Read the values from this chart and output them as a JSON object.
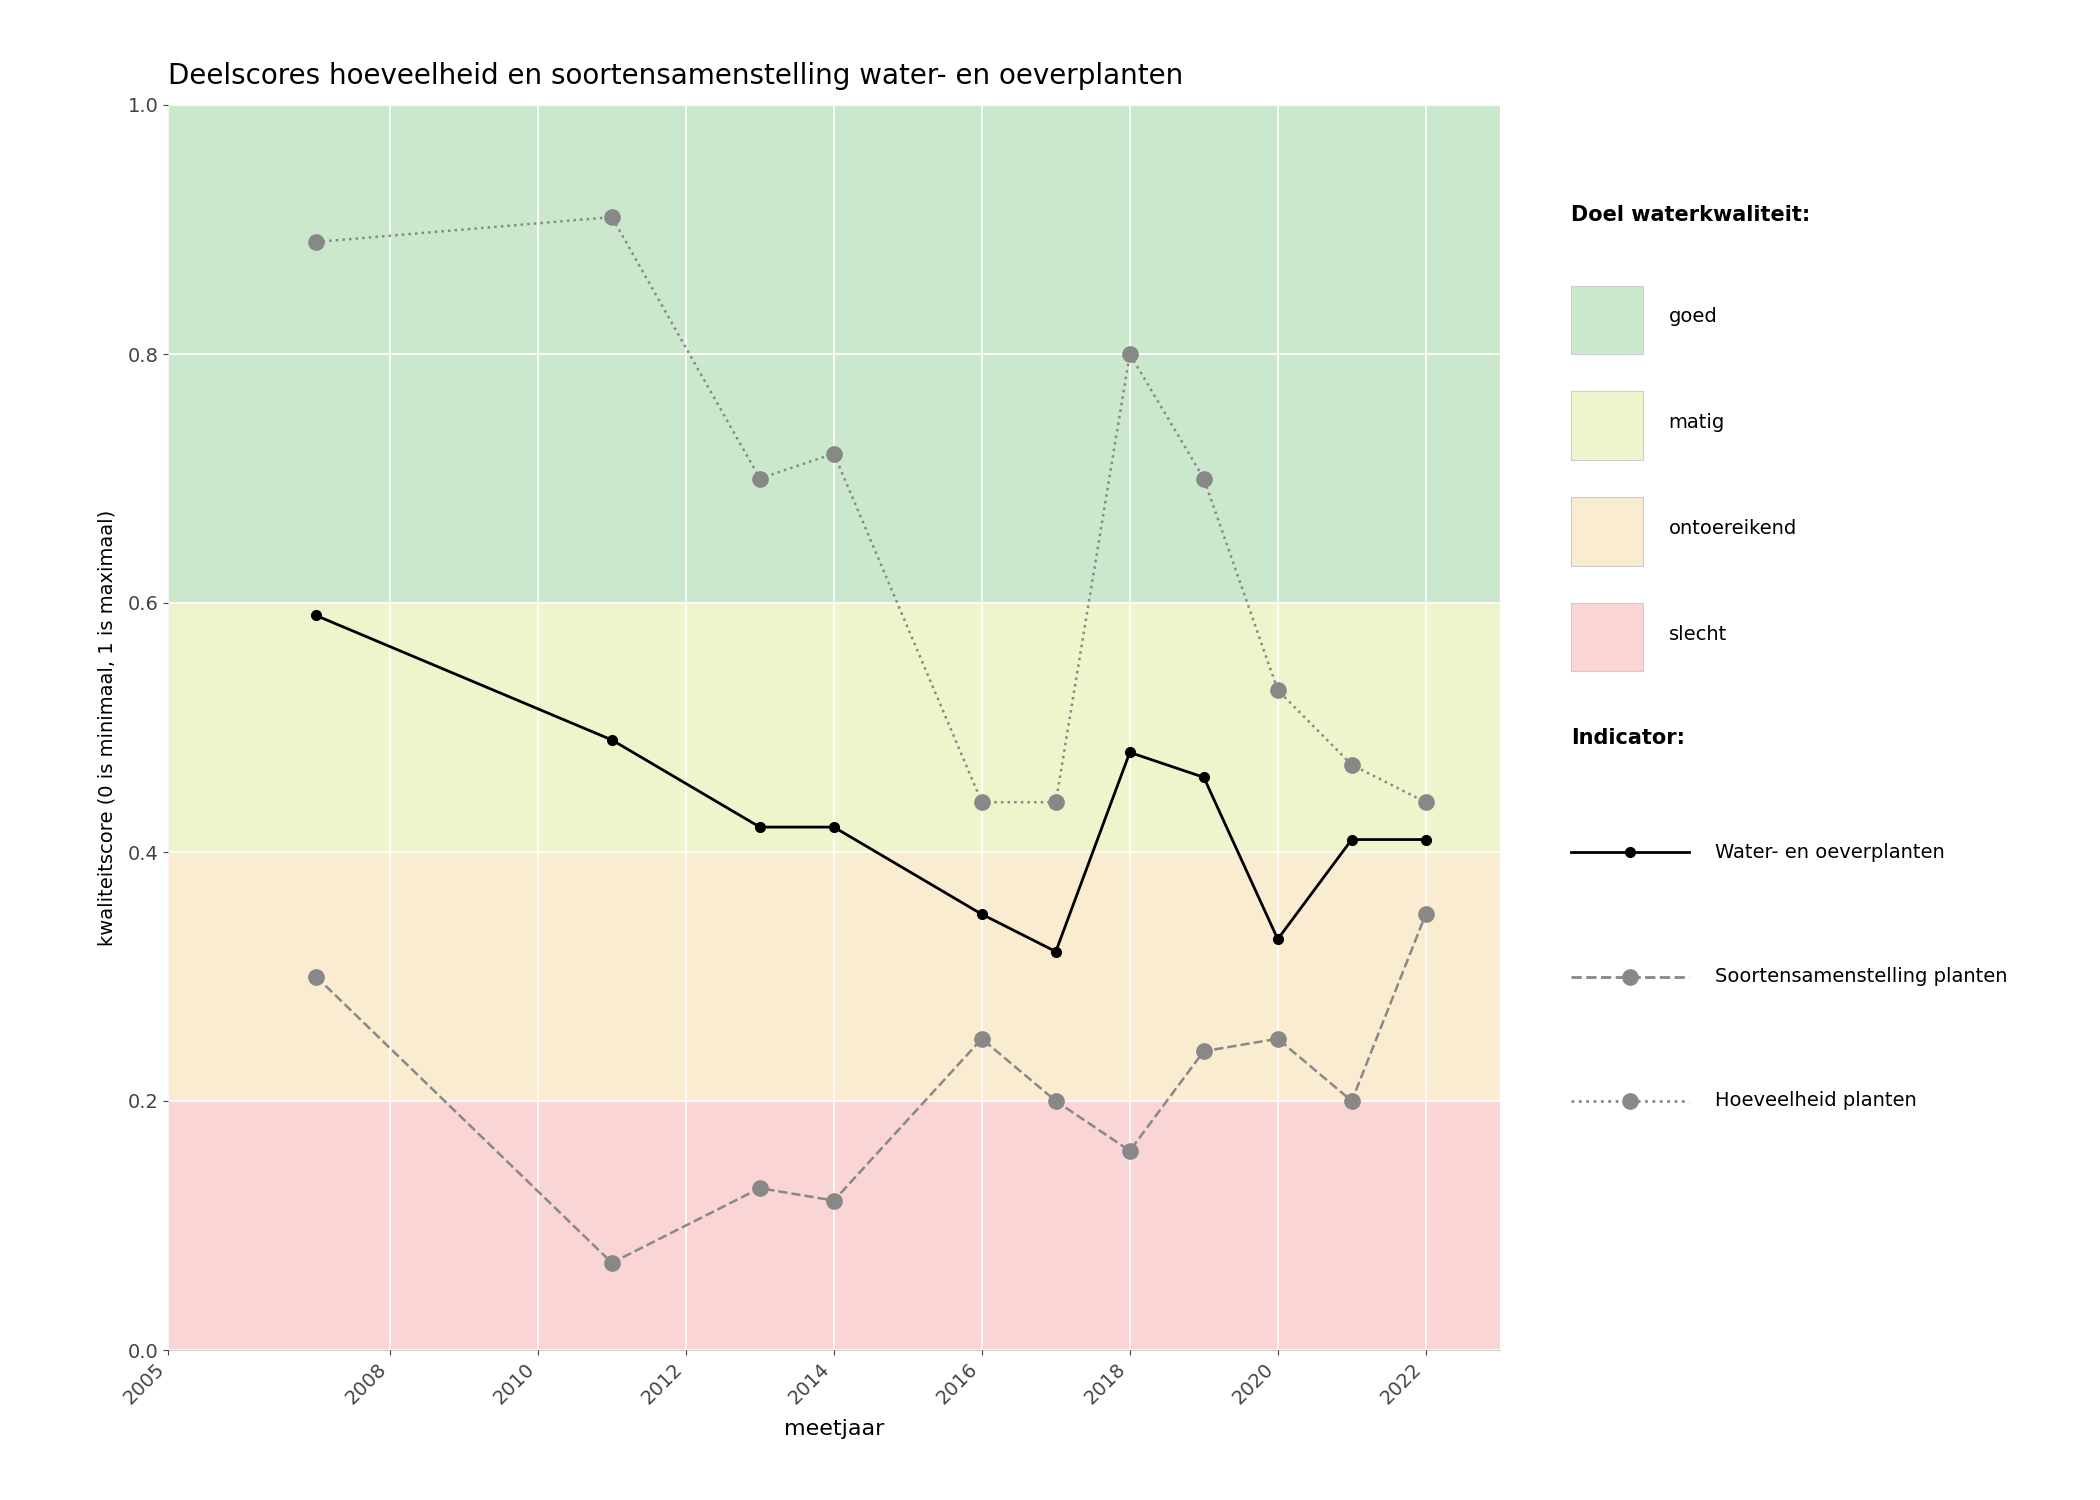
{
  "title": "Deelscores hoeveelheid en soortensamenstelling water- en oeverplanten",
  "xlabel": "meetjaar",
  "ylabel": "kwaliteitscore (0 is minimaal, 1 is maximaal)",
  "xlim": [
    2005,
    2023
  ],
  "ylim": [
    0.0,
    1.0
  ],
  "xticks": [
    2005,
    2008,
    2010,
    2012,
    2014,
    2016,
    2018,
    2020,
    2022
  ],
  "yticks": [
    0.0,
    0.2,
    0.4,
    0.6,
    0.8,
    1.0
  ],
  "bg_bands": [
    {
      "ymin": 0.6,
      "ymax": 1.0,
      "color": "#cce8cc",
      "label": "goed"
    },
    {
      "ymin": 0.4,
      "ymax": 0.6,
      "color": "#eef5cc",
      "label": "matig"
    },
    {
      "ymin": 0.2,
      "ymax": 0.4,
      "color": "#faecd0",
      "label": "ontoereikend"
    },
    {
      "ymin": 0.0,
      "ymax": 0.2,
      "color": "#f9d5d5",
      "label": "slecht"
    }
  ],
  "water_oever": {
    "years": [
      2007,
      2011,
      2013,
      2014,
      2016,
      2017,
      2018,
      2019,
      2020,
      2021,
      2022
    ],
    "values": [
      0.59,
      0.49,
      0.42,
      0.42,
      0.35,
      0.32,
      0.48,
      0.46,
      0.33,
      0.41,
      0.41
    ],
    "color": "black",
    "linestyle": "-",
    "marker": "o",
    "markersize": 7,
    "linewidth": 2.0,
    "label": "Water- en oeverplanten"
  },
  "soortensam": {
    "years": [
      2007,
      2011,
      2013,
      2014,
      2016,
      2017,
      2018,
      2019,
      2020,
      2021,
      2022
    ],
    "values": [
      0.3,
      0.07,
      0.13,
      0.12,
      0.25,
      0.2,
      0.16,
      0.24,
      0.25,
      0.2,
      0.35
    ],
    "color": "#888888",
    "linestyle": "--",
    "marker": "o",
    "markersize": 11,
    "linewidth": 1.8,
    "label": "Soortensamenstelling planten"
  },
  "hoeveelheid": {
    "years": [
      2007,
      2011,
      2013,
      2014,
      2016,
      2017,
      2018,
      2019,
      2020,
      2021,
      2022
    ],
    "values": [
      0.89,
      0.91,
      0.7,
      0.72,
      0.44,
      0.44,
      0.8,
      0.7,
      0.53,
      0.47,
      0.44
    ],
    "color": "#888888",
    "linestyle": ":",
    "marker": "o",
    "markersize": 11,
    "linewidth": 1.8,
    "label": "Hoeveelheid planten"
  },
  "legend_quality_title": "Doel waterkwaliteit:",
  "legend_indicator_title": "Indicator:",
  "figsize": [
    21.0,
    15.0
  ],
  "dpi": 100
}
